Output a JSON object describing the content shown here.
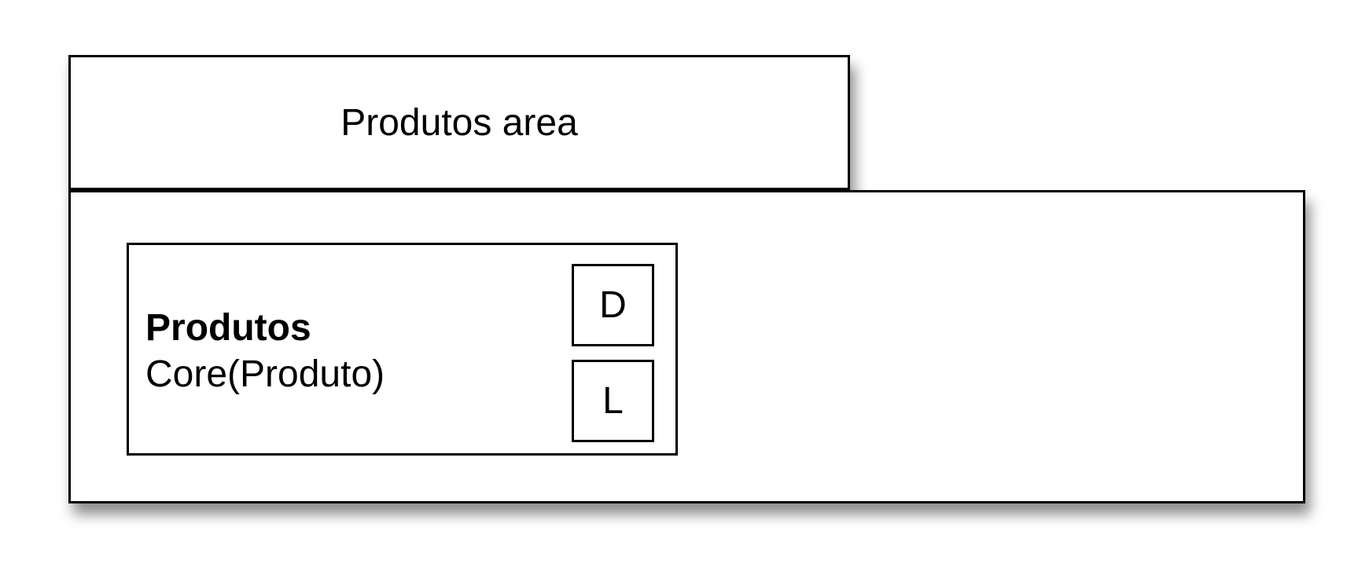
{
  "area": {
    "title": "Produtos area"
  },
  "component": {
    "name": "Produtos",
    "type": "Core(Produto)",
    "ports": [
      {
        "label": "D"
      },
      {
        "label": "L"
      }
    ]
  }
}
